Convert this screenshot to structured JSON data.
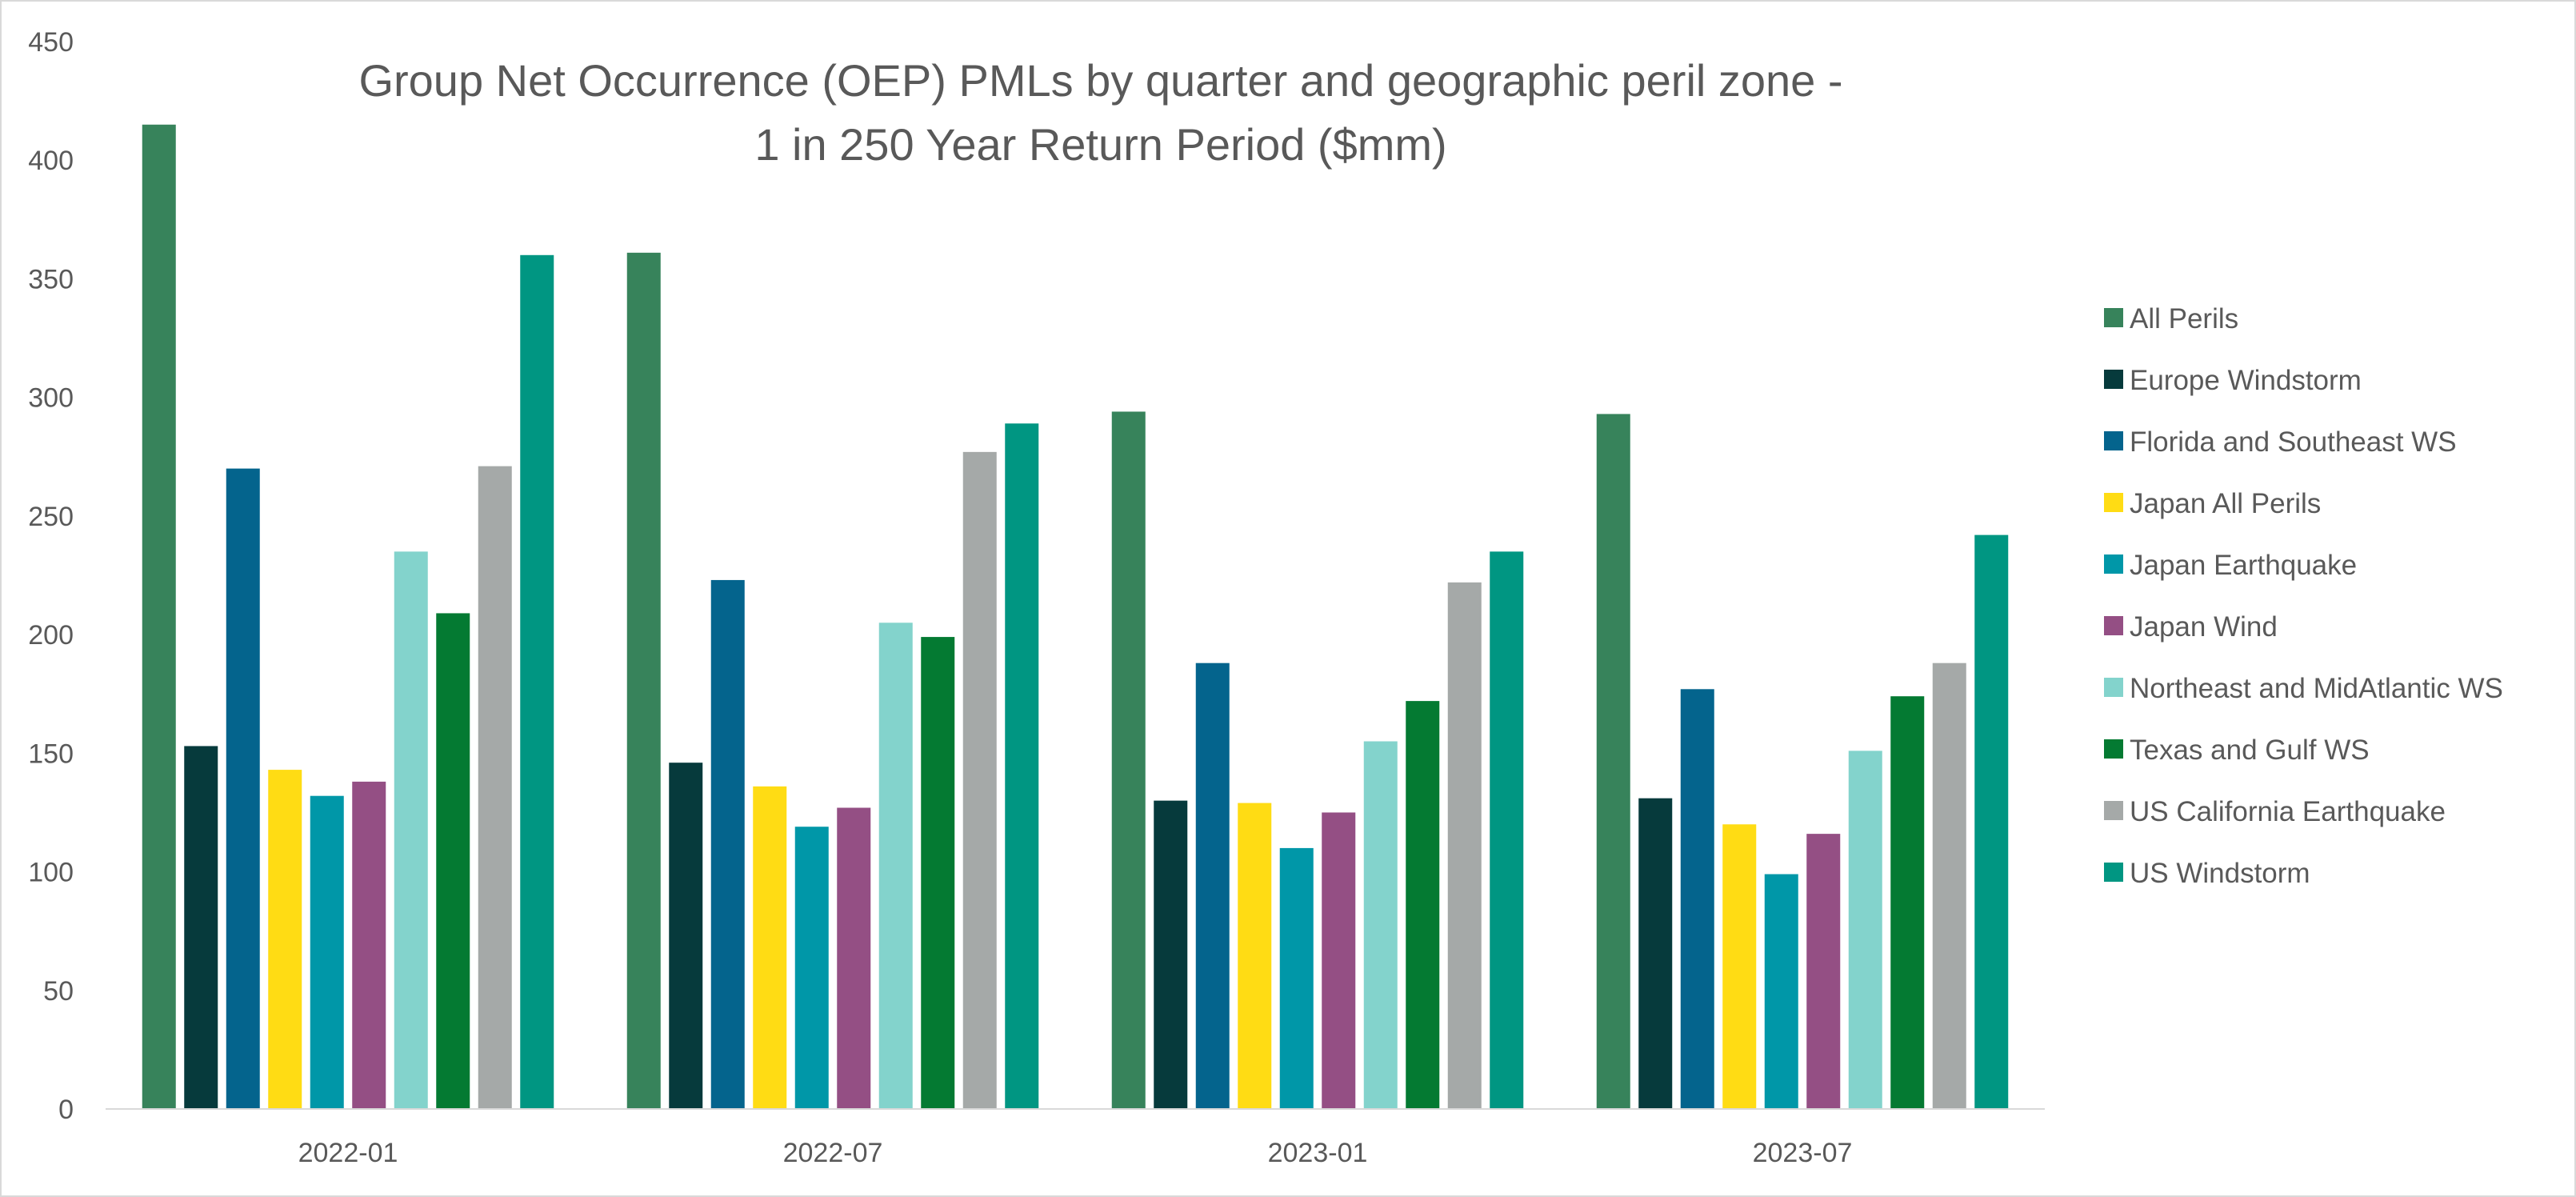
{
  "chart_data": {
    "type": "bar",
    "title_lines": [
      "Group Net Occurrence (OEP) PMLs by quarter and geographic peril zone -",
      "1 in 250 Year Return Period ($mm)"
    ],
    "xlabel": "",
    "ylabel": "",
    "ylim": [
      0,
      450
    ],
    "yticks": [
      0,
      50,
      100,
      150,
      200,
      250,
      300,
      350,
      400,
      450
    ],
    "categories": [
      "2022-01",
      "2022-07",
      "2023-01",
      "2023-07"
    ],
    "grid": false,
    "legend_position": "right",
    "series": [
      {
        "name": "All Perils",
        "color": "#37835b",
        "values": [
          415,
          361,
          294,
          293
        ]
      },
      {
        "name": "Europe Windstorm",
        "color": "#063a3c",
        "values": [
          153,
          146,
          130,
          131
        ]
      },
      {
        "name": "Florida and Southeast WS",
        "color": "#04648d",
        "values": [
          270,
          223,
          188,
          177
        ]
      },
      {
        "name": "Japan All Perils",
        "color": "#ffdc14",
        "values": [
          143,
          136,
          129,
          120
        ]
      },
      {
        "name": "Japan Earthquake",
        "color": "#0097a8",
        "values": [
          132,
          119,
          110,
          99
        ]
      },
      {
        "name": "Japan Wind",
        "color": "#944f84",
        "values": [
          138,
          127,
          125,
          116
        ]
      },
      {
        "name": "Northeast and MidAtlantic WS",
        "color": "#83d3cc",
        "values": [
          235,
          205,
          155,
          151
        ]
      },
      {
        "name": "Texas and Gulf WS",
        "color": "#047a32",
        "values": [
          209,
          199,
          172,
          174
        ]
      },
      {
        "name": "US California Earthquake",
        "color": "#a5a9a8",
        "values": [
          271,
          277,
          222,
          188
        ]
      },
      {
        "name": "US Windstorm",
        "color": "#009682",
        "values": [
          360,
          289,
          235,
          242
        ]
      }
    ]
  }
}
